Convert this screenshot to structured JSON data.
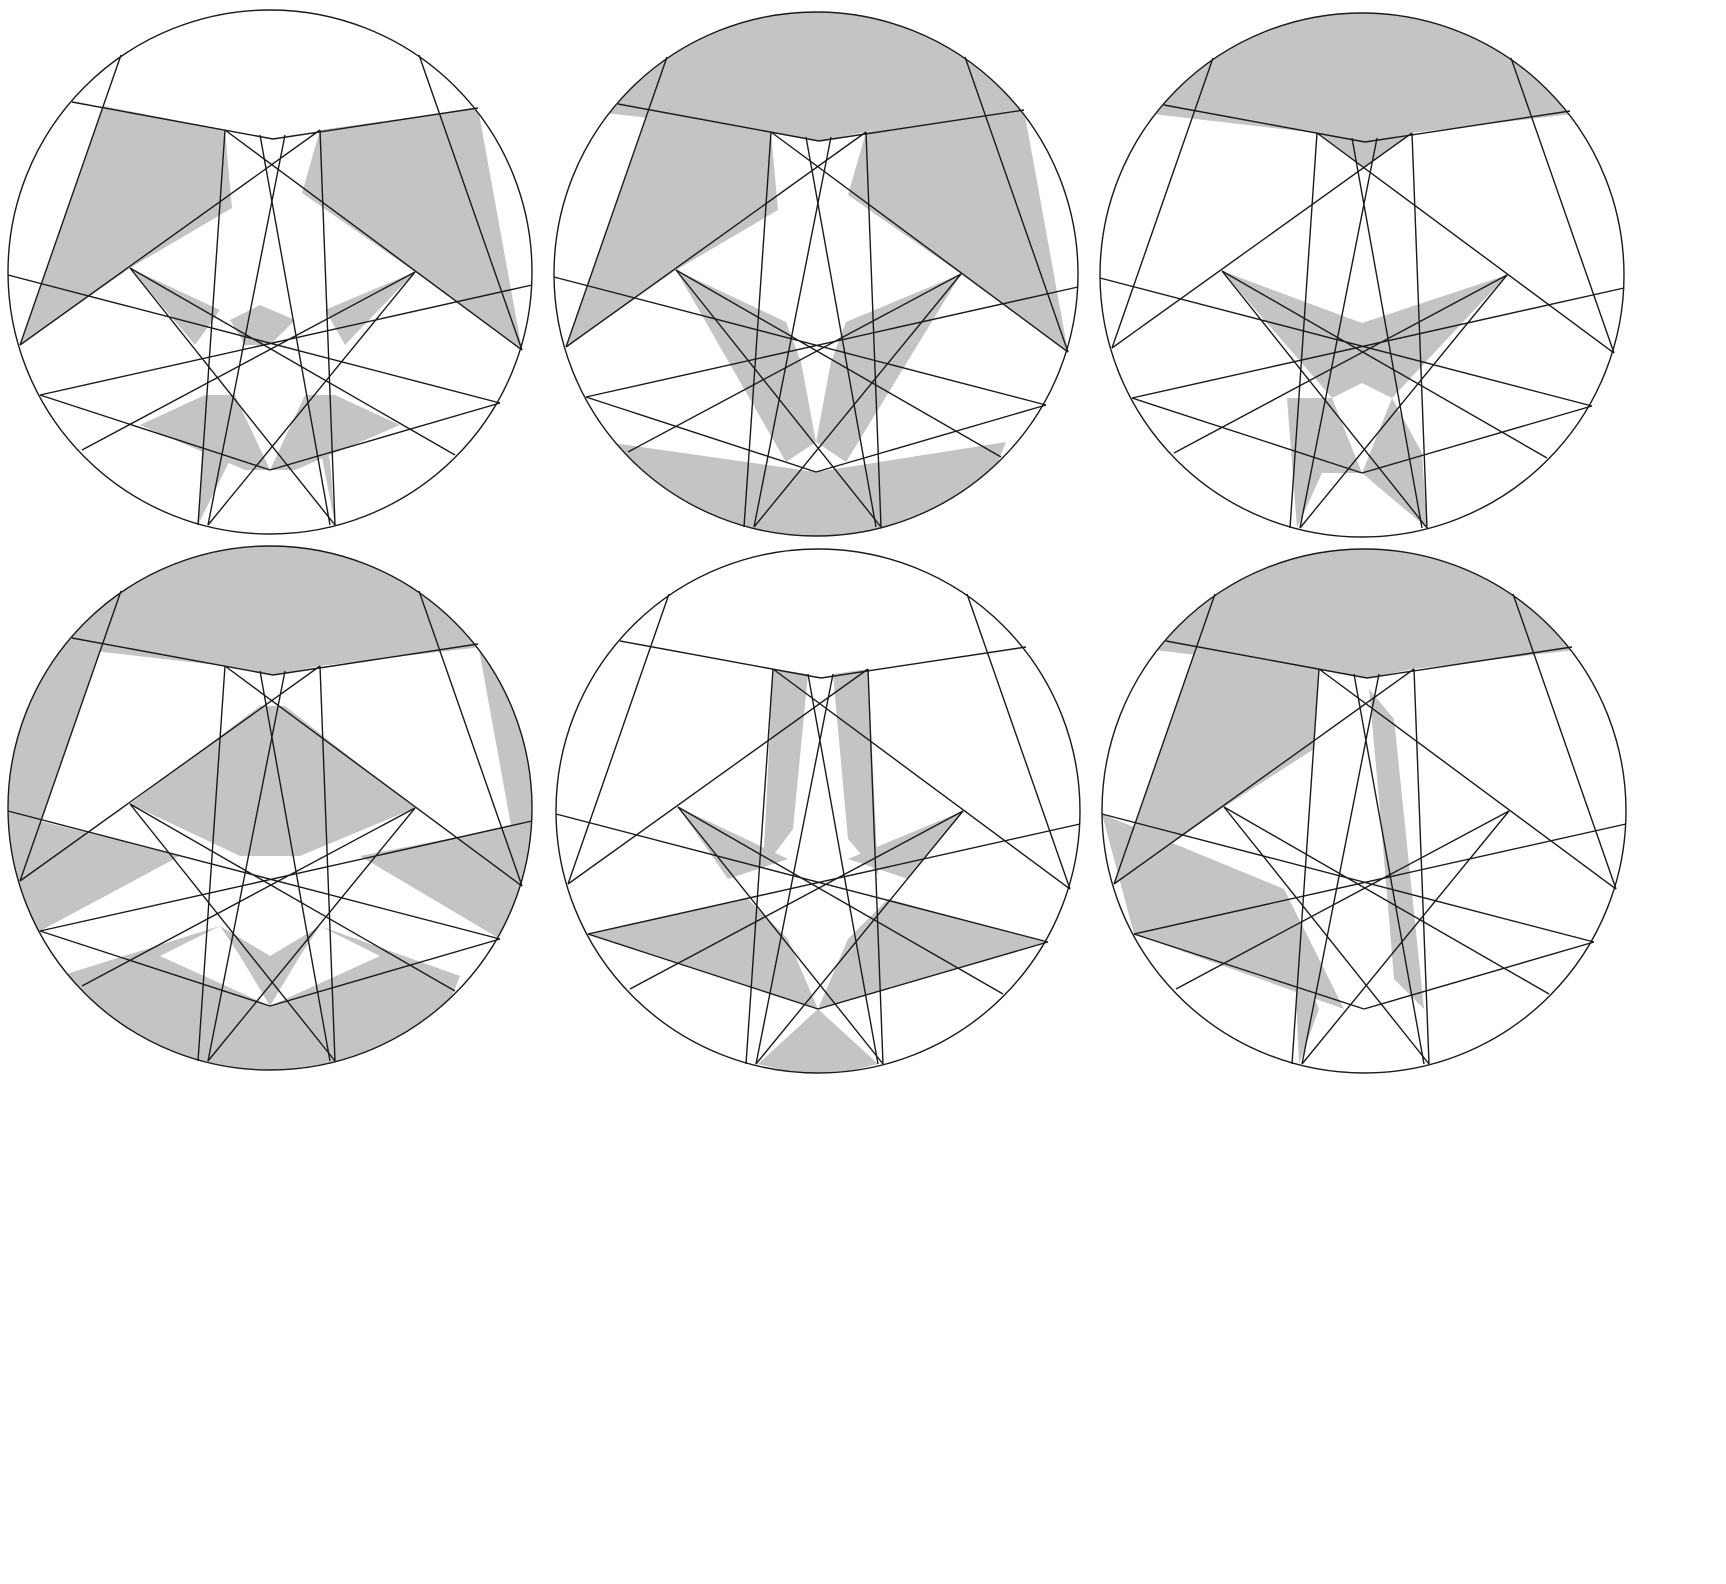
{
  "colors": {
    "background": "#ffffff",
    "stroke": "#1a1a1a",
    "fill": "#c4c4c4"
  },
  "panels": [
    {
      "id": "top-left"
    },
    {
      "id": "top-middle"
    },
    {
      "id": "top-right"
    },
    {
      "id": "bottom-left"
    },
    {
      "id": "bottom-middle"
    },
    {
      "id": "bottom-right"
    }
  ]
}
